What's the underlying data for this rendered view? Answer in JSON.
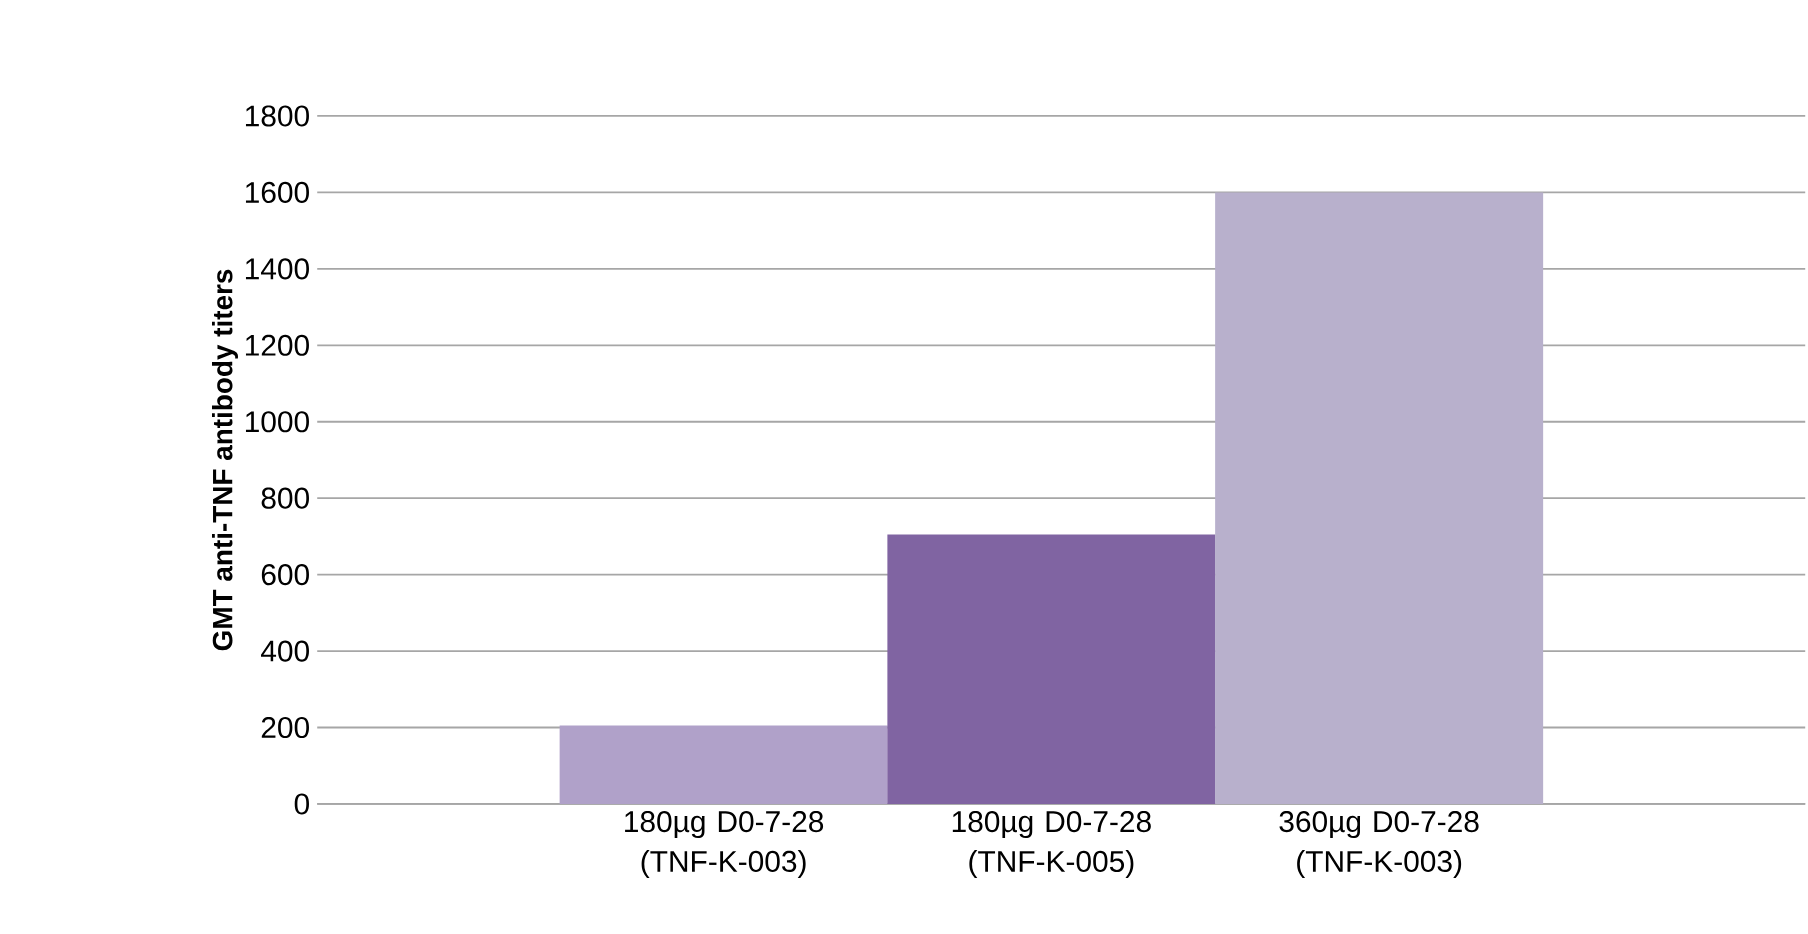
{
  "chart_data": {
    "type": "bar",
    "ylabel": "GMT anti-TNF antibody titers",
    "categories": [
      "180µg D0-7-28 (TNF-K-003)",
      "180µg D0-7-28 (TNF-K-005)",
      "360µg D0-7-28 (TNF-K-003)"
    ],
    "values": [
      205,
      705,
      1600
    ],
    "colors": [
      "#b0a1c9",
      "#8064a2",
      "#b8b0cc"
    ],
    "ylim": [
      0,
      1800
    ],
    "yticks": [
      0,
      200,
      400,
      600,
      800,
      1000,
      1200,
      1400,
      1600,
      1800
    ],
    "grid": "y"
  }
}
